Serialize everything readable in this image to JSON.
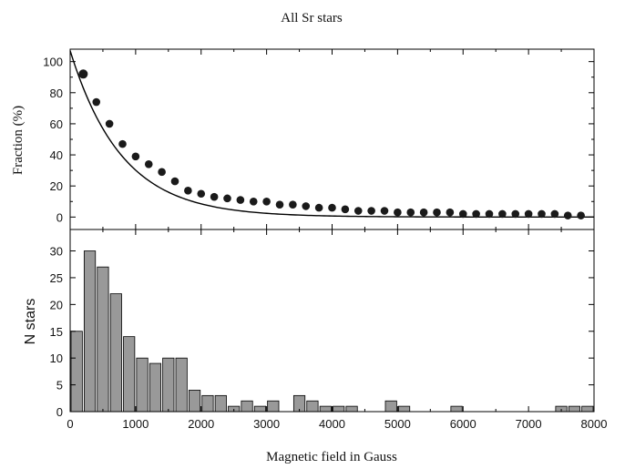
{
  "chart_data": [
    {
      "type": "scatter",
      "title": "All Sr stars",
      "ylabel": "Fraction (%)",
      "xlabel": "",
      "xlim": [
        0,
        8000
      ],
      "ylim": [
        -8,
        108
      ],
      "yticks": [
        0,
        20,
        40,
        60,
        80,
        100
      ],
      "grid": false,
      "marker_color": "#1a1a1a",
      "points": {
        "x": [
          200,
          400,
          600,
          800,
          1000,
          1200,
          1400,
          1600,
          1800,
          2000,
          2200,
          2400,
          2600,
          2800,
          3000,
          3200,
          3400,
          3600,
          3800,
          4000,
          4200,
          4400,
          4600,
          4800,
          5000,
          5200,
          5400,
          5600,
          5800,
          6000,
          6200,
          6400,
          6600,
          6800,
          7000,
          7200,
          7400,
          7600,
          7800
        ],
        "y": [
          92,
          74,
          60,
          47,
          39,
          34,
          29,
          23,
          17,
          15,
          13,
          12,
          11,
          10,
          10,
          8,
          8,
          7,
          6,
          6,
          5,
          4,
          4,
          4,
          3,
          3,
          3,
          3,
          3,
          2,
          2,
          2,
          2,
          2,
          2,
          2,
          2,
          1,
          1
        ]
      },
      "fit_curve": {
        "description": "exponential decay",
        "y0": 107,
        "scale": 790
      }
    },
    {
      "type": "bar",
      "title": "",
      "xlabel": "Magnetic field in Gauss",
      "ylabel": "N stars",
      "xlim": [
        0,
        8000
      ],
      "ylim": [
        0,
        34
      ],
      "xticks": [
        0,
        1000,
        2000,
        3000,
        4000,
        5000,
        6000,
        7000,
        8000
      ],
      "yticks": [
        0,
        5,
        10,
        15,
        20,
        25,
        30
      ],
      "bin_width": 200,
      "bar_color": "#999999",
      "x": [
        0,
        200,
        400,
        600,
        800,
        1000,
        1200,
        1400,
        1600,
        1800,
        2000,
        2200,
        2400,
        2600,
        2800,
        3000,
        3200,
        3400,
        3600,
        3800,
        4000,
        4200,
        4400,
        4600,
        4800,
        5000,
        5200,
        5400,
        5600,
        5800,
        6000,
        6200,
        6400,
        6600,
        6800,
        7000,
        7200,
        7400,
        7600,
        7800
      ],
      "values": [
        15,
        30,
        27,
        22,
        14,
        10,
        9,
        10,
        10,
        4,
        3,
        3,
        1,
        2,
        1,
        2,
        0,
        3,
        2,
        1,
        1,
        1,
        0,
        0,
        2,
        1,
        0,
        0,
        0,
        1,
        0,
        0,
        0,
        0,
        0,
        0,
        0,
        1,
        1,
        1
      ]
    }
  ]
}
